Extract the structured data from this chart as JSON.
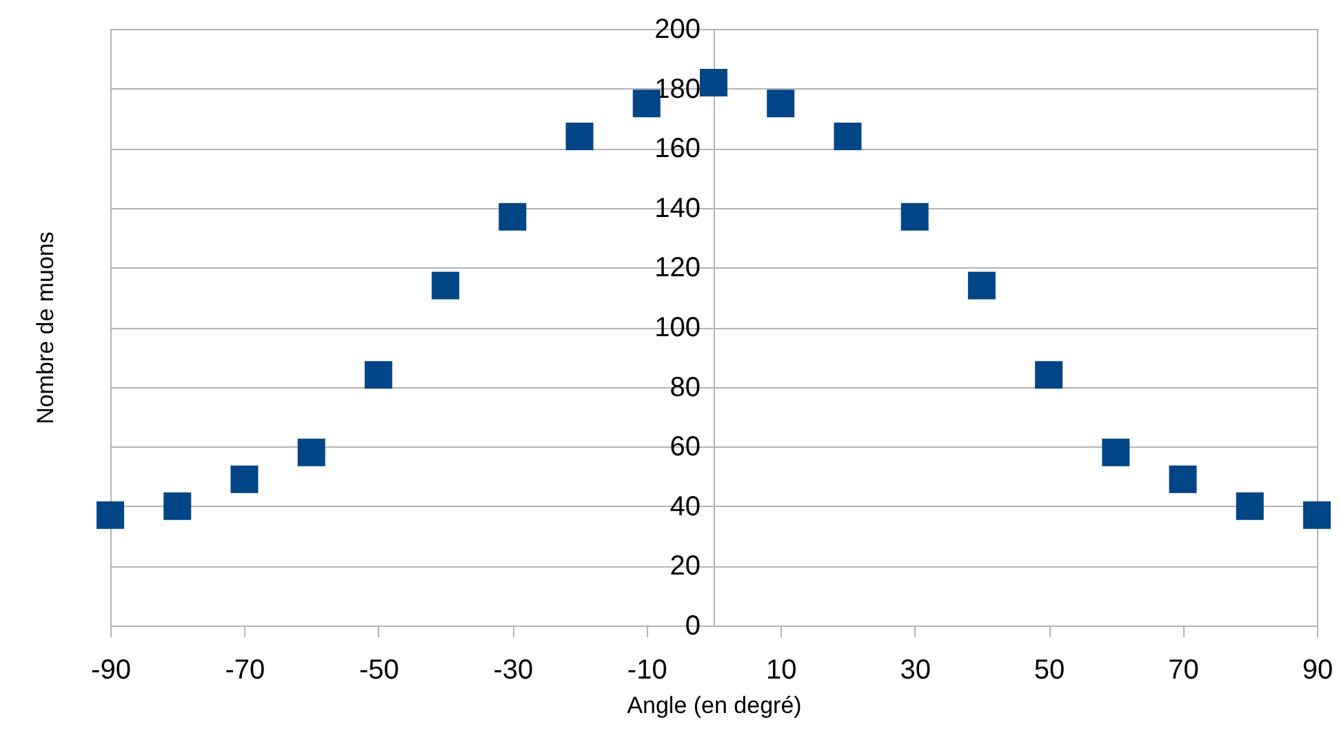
{
  "chart_data": {
    "type": "scatter",
    "xlabel": "Angle (en degré)",
    "ylabel": "Nombre de muons",
    "x": [
      -90,
      -80,
      -70,
      -60,
      -50,
      -40,
      -30,
      -20,
      -10,
      0,
      10,
      20,
      30,
      40,
      50,
      60,
      70,
      80,
      90
    ],
    "series": [
      {
        "color": "#004586",
        "values": [
          37,
          40,
          49,
          58,
          84,
          114,
          137,
          164,
          175,
          182,
          175,
          164,
          137,
          114,
          84,
          58,
          49,
          40,
          37
        ]
      }
    ],
    "xlim": [
      -90,
      90
    ],
    "xticks": [
      -90,
      -70,
      -50,
      -30,
      -10,
      10,
      30,
      50,
      70,
      90
    ],
    "ylim": [
      0,
      200
    ],
    "yticks": [
      0,
      20,
      40,
      60,
      80,
      100,
      120,
      140,
      160,
      180,
      200
    ],
    "grid": "y",
    "marker": "square",
    "legend": false
  }
}
